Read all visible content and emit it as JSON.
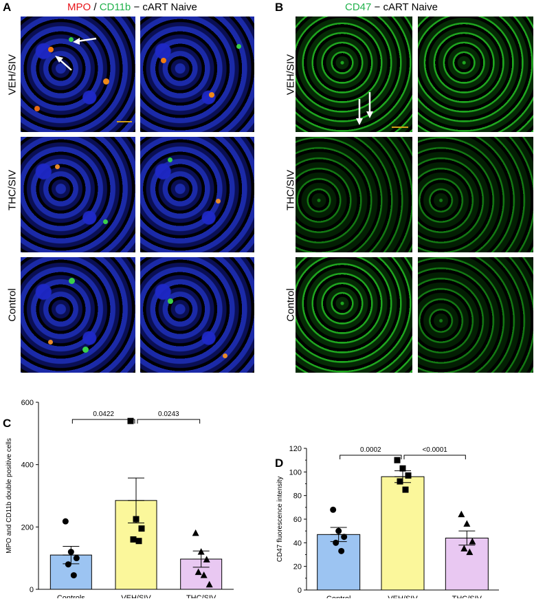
{
  "panelA": {
    "letter": "A",
    "title_mpo": "MPO",
    "title_sep": " / ",
    "title_cd11b": "CD11b",
    "title_rest": " − cART Naive",
    "rows": [
      "VEH/SIV",
      "THC/SIV",
      "Control"
    ]
  },
  "panelB": {
    "letter": "B",
    "title_cd47": "CD47",
    "title_rest": " − cART Naive",
    "rows": [
      "VEH/SIV",
      "THC/SIV",
      "Control"
    ]
  },
  "colors": {
    "mpo": "#e8141a",
    "cd11b": "#22b24c",
    "cd47": "#22b24c",
    "control_bar": "#9cc4f2",
    "veh_bar": "#fbf79b",
    "thc_bar": "#e9c8f2"
  },
  "chart_data": [
    {
      "panel": "C",
      "type": "bar",
      "categories": [
        "Controls",
        "VEH/SIV",
        "THC/SIV"
      ],
      "values": [
        110,
        285,
        97
      ],
      "sem": [
        28,
        72,
        26
      ],
      "markers": [
        "circle",
        "square",
        "triangle"
      ],
      "points": [
        [
          218,
          120,
          100,
          80,
          45
        ],
        [
          540,
          225,
          195,
          160,
          155
        ],
        [
          180,
          120,
          95,
          55,
          45,
          15
        ]
      ],
      "ylabel": "MPO and CD11b double positive cells",
      "xlabel": "",
      "ylim": [
        0,
        600
      ],
      "yticks": [
        0,
        200,
        400,
        600
      ],
      "comparisons": [
        {
          "from": 0,
          "to": 1,
          "label": "0.0422"
        },
        {
          "from": 1,
          "to": 2,
          "label": "0.0243"
        }
      ]
    },
    {
      "panel": "D",
      "type": "bar",
      "categories": [
        "Control",
        "VEH/SIV",
        "THC/SIV"
      ],
      "values": [
        47,
        96,
        44
      ],
      "sem": [
        6,
        5,
        6
      ],
      "markers": [
        "circle",
        "square",
        "triangle"
      ],
      "points": [
        [
          68,
          50,
          45,
          40,
          33
        ],
        [
          110,
          103,
          97,
          92,
          85
        ],
        [
          64,
          56,
          41,
          35,
          32
        ]
      ],
      "ylabel": "CD47 fluorescence intensity",
      "xlabel": "",
      "ylim": [
        0,
        120
      ],
      "yticks": [
        0,
        20,
        40,
        60,
        80,
        100,
        120
      ],
      "comparisons": [
        {
          "from": 0,
          "to": 1,
          "label": "0.0002"
        },
        {
          "from": 1,
          "to": 2,
          "label": "<0.0001"
        }
      ]
    }
  ]
}
